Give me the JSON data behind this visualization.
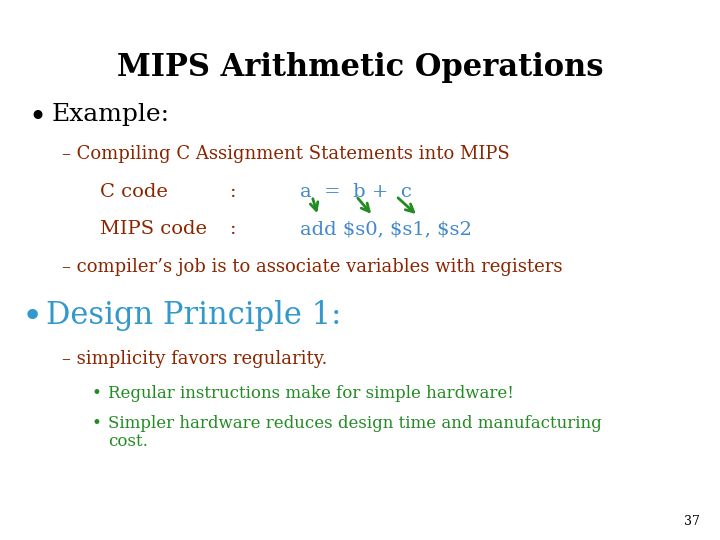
{
  "title": "MIPS Arithmetic Operations",
  "background_color": "#ffffff",
  "title_color": "#000000",
  "title_fontsize": 22,
  "title_fontweight": "bold",
  "bullet1_text": "Example:",
  "bullet1_color": "#000000",
  "bullet1_fontsize": 18,
  "dash1_text": "Compiling C Assignment Statements into MIPS",
  "dash1_color": "#8B2500",
  "dash1_fontsize": 13,
  "ccode_label": "C code",
  "ccode_colon": ":",
  "ccode_expr": "a  =  b +  c",
  "ccode_color": "#8B2500",
  "ccode_expr_color": "#4488CC",
  "ccode_fontsize": 14,
  "mipscode_label": "MIPS code",
  "mipscode_colon": ":",
  "mipscode_expr": "add $s0, $s1, $s2",
  "mipscode_color": "#8B2500",
  "mipscode_expr_color": "#4488CC",
  "mipscode_fontsize": 14,
  "dash2_text": "compiler’s job is to associate variables with registers",
  "dash2_color": "#8B2500",
  "dash2_fontsize": 13,
  "bullet2_text": "Design Principle 1:",
  "bullet2_color": "#3399CC",
  "bullet2_fontsize": 22,
  "dash3_text": "simplicity favors regularity.",
  "dash3_color": "#8B2500",
  "dash3_fontsize": 13,
  "sub_bullet1": "Regular instructions make for simple hardware!",
  "sub_bullet1_color": "#228B22",
  "sub_bullet1_fontsize": 12,
  "sub_bullet2_line1": "Simpler hardware reduces design time and manufacturing",
  "sub_bullet2_line2": "cost.",
  "sub_bullet2_color": "#228B22",
  "sub_bullet2_fontsize": 12,
  "arrow_color": "#228B22",
  "page_number": "37",
  "page_number_color": "#000000",
  "page_number_fontsize": 9
}
